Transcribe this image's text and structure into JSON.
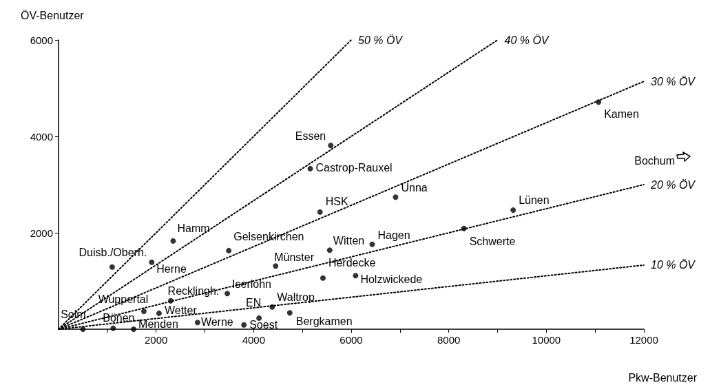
{
  "chart_data": {
    "type": "scatter",
    "xlabel": "Pkw-Benutzer",
    "ylabel": "ÖV-Benutzer",
    "xlim": [
      0,
      12000
    ],
    "ylim": [
      0,
      6000
    ],
    "xticks": [
      {
        "value": 1000,
        "label": null
      },
      2000,
      {
        "value": 3000,
        "label": null
      },
      4000,
      {
        "value": 5000,
        "label": null
      },
      6000,
      {
        "value": 7000,
        "label": null
      },
      8000,
      {
        "value": 9000,
        "label": null
      },
      10000,
      {
        "value": 11000,
        "label": null
      },
      12000
    ],
    "yticks": [
      2000,
      4000,
      6000
    ],
    "grid": false,
    "legend": false,
    "marker": "circle",
    "series": [
      {
        "color": "#000000",
        "x": [
          500,
          1120,
          1540,
          1750,
          2060,
          2300,
          2850,
          3800,
          4110,
          4380,
          4740,
          3460,
          1100,
          1910,
          2350,
          3490,
          4450,
          5560,
          5420,
          6090,
          6430,
          5580,
          5160,
          5360,
          6910,
          8310,
          9320,
          11070
        ],
        "values": [
          0,
          20,
          0,
          370,
          330,
          590,
          140,
          90,
          230,
          460,
          340,
          740,
          1290,
          1390,
          1830,
          1630,
          1310,
          1640,
          1060,
          1110,
          1760,
          3810,
          3330,
          2430,
          2740,
          2090,
          2470,
          4710
        ]
      },
      {
        "type": "line",
        "name": "50 % ÖV",
        "color": "#000000",
        "line_style": "dotted",
        "marker": "none",
        "x": [
          0,
          6000
        ],
        "values": [
          0,
          6000
        ]
      },
      {
        "type": "line",
        "name": "40 % ÖV",
        "color": "#000000",
        "line_style": "dotted",
        "marker": "none",
        "x": [
          0,
          9000
        ],
        "values": [
          0,
          6000
        ]
      },
      {
        "type": "line",
        "name": "30 % ÖV",
        "color": "#000000",
        "line_style": "dotted",
        "marker": "none",
        "x": [
          0,
          12000
        ],
        "values": [
          0,
          5140
        ]
      },
      {
        "type": "line",
        "name": "20 % ÖV",
        "color": "#000000",
        "line_style": "dotted",
        "marker": "none",
        "x": [
          0,
          12000
        ],
        "values": [
          0,
          3000
        ]
      },
      {
        "type": "line",
        "name": "10 % ÖV",
        "color": "#000000",
        "line_style": "dotted",
        "marker": "none",
        "x": [
          0,
          12000
        ],
        "values": [
          0,
          1330
        ]
      }
    ],
    "annotations": [
      {
        "text": "Solm",
        "x": 500,
        "y": 0
      },
      {
        "text": "Bönen",
        "x": 1120,
        "y": 20
      },
      {
        "text": "Menden",
        "x": 1540,
        "y": 0
      },
      {
        "text": "Wuppertal",
        "x": 1750,
        "y": 370
      },
      {
        "text": "Wetter",
        "x": 2060,
        "y": 330
      },
      {
        "text": "Recklingh.",
        "x": 2300,
        "y": 590
      },
      {
        "text": "Werne",
        "x": 2850,
        "y": 140
      },
      {
        "text": "Soest",
        "x": 3800,
        "y": 90
      },
      {
        "text": "EN",
        "x": 4110,
        "y": 230
      },
      {
        "text": "Waltrop",
        "x": 4380,
        "y": 460
      },
      {
        "text": "Bergkamen",
        "x": 4740,
        "y": 340
      },
      {
        "text": "Iserlohn",
        "x": 3460,
        "y": 740
      },
      {
        "text": "Duisb./Oberh.",
        "x": 1100,
        "y": 1290
      },
      {
        "text": "Herne",
        "x": 1910,
        "y": 1390
      },
      {
        "text": "Hamm",
        "x": 2350,
        "y": 1830
      },
      {
        "text": "Gelsenkirchen",
        "x": 3490,
        "y": 1630
      },
      {
        "text": "Münster",
        "x": 4450,
        "y": 1310
      },
      {
        "text": "Witten",
        "x": 5560,
        "y": 1640
      },
      {
        "text": "Herdecke",
        "x": 5420,
        "y": 1060
      },
      {
        "text": "Holzwickede",
        "x": 6090,
        "y": 1110
      },
      {
        "text": "Hagen",
        "x": 6430,
        "y": 1760
      },
      {
        "text": "Essen",
        "x": 5580,
        "y": 3810
      },
      {
        "text": "Castrop-Rauxel",
        "x": 5160,
        "y": 3330
      },
      {
        "text": "HSK",
        "x": 5360,
        "y": 2430
      },
      {
        "text": "Unna",
        "x": 6910,
        "y": 2740
      },
      {
        "text": "Schwerte",
        "x": 8310,
        "y": 2090
      },
      {
        "text": "Lünen",
        "x": 9320,
        "y": 2470
      },
      {
        "text": "Kamen",
        "x": 11070,
        "y": 4710
      },
      "Bochum"
    ]
  }
}
